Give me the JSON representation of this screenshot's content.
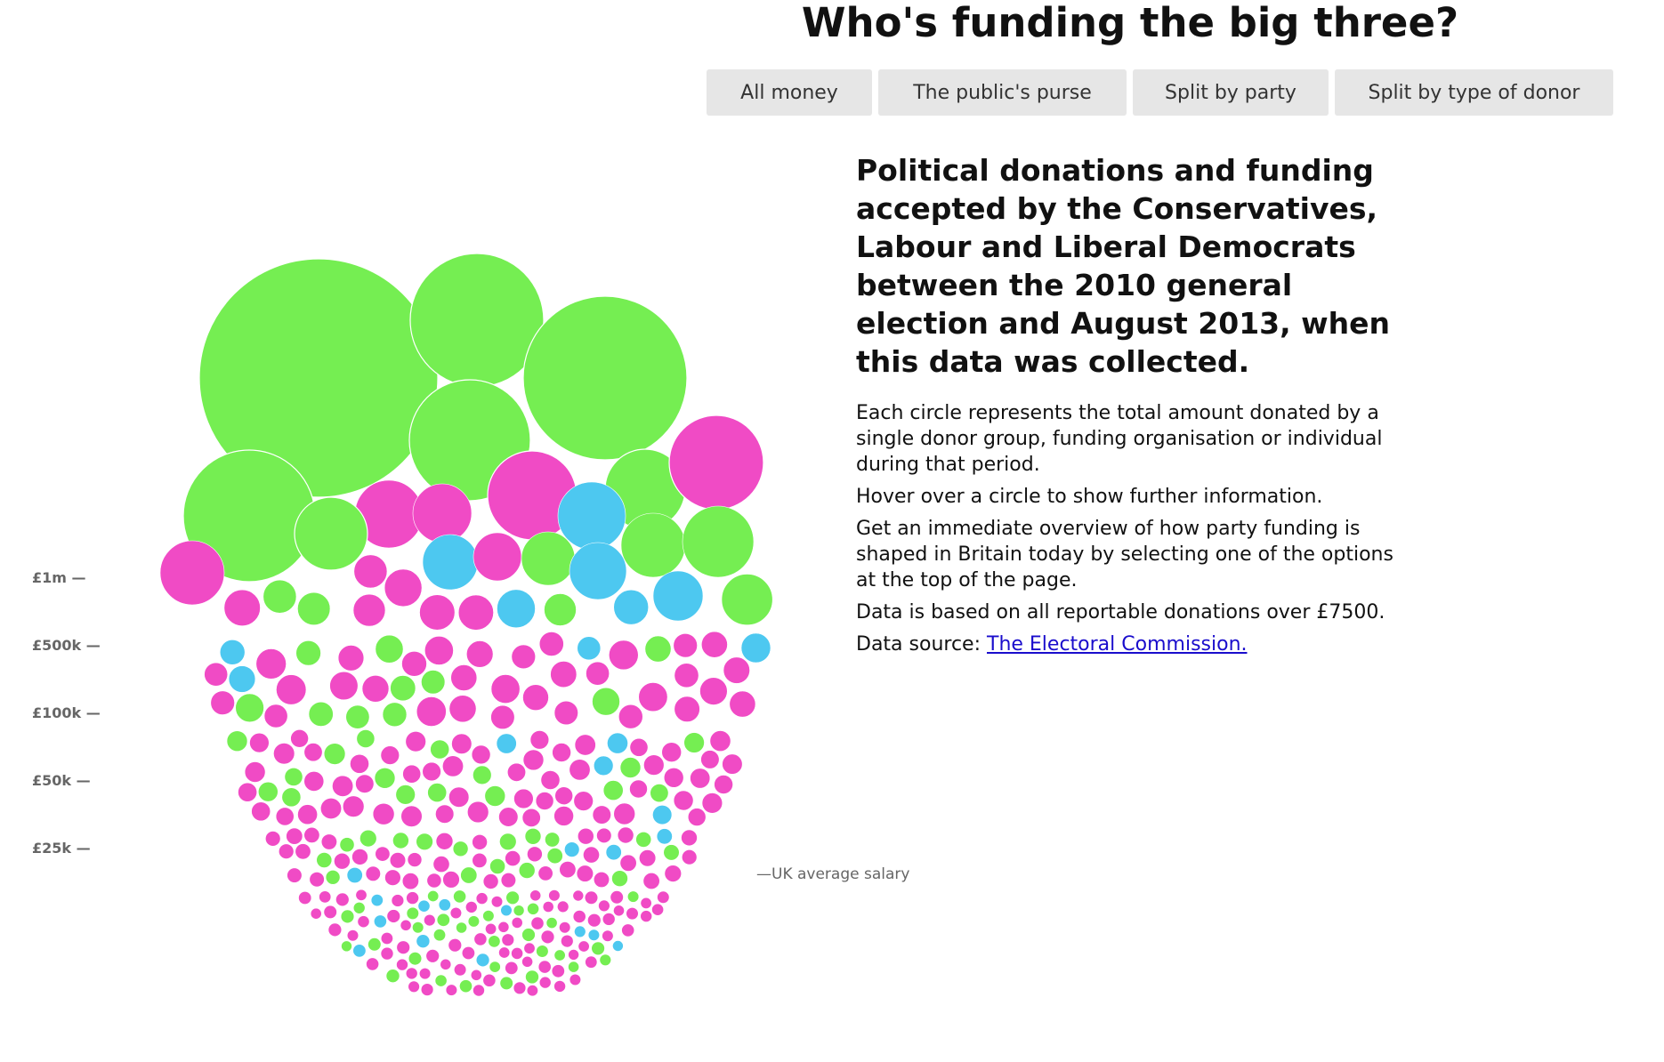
{
  "title": "Who's funding the big three?",
  "view_buttons": [
    {
      "label": "All money"
    },
    {
      "label": "The public's purse"
    },
    {
      "label": "Split by party"
    },
    {
      "label": "Split by type of donor"
    }
  ],
  "info": {
    "heading": "Political donations and funding accepted by the Conservatives, Labour and Liberal Democrats between the 2010 general election and August 2013, when this data was collected.",
    "paragraphs": [
      "Each circle represents the total amount donated by a single donor group, funding organisation or individual during that period.",
      "Hover over a circle to show further information.",
      "Get an immediate overview of how party funding is shaped in Britain today by selecting one of the options at the top of the page.",
      "Data is based on all reportable donations over £7500."
    ],
    "source_prefix": "Data source: ",
    "source_link": "The Electoral Commission."
  },
  "colors": {
    "green": "#75ee52",
    "magenta": "#f04bc5",
    "blue": "#4dc8f0",
    "background": "#ffffff",
    "button_bg": "#e6e6e6"
  },
  "chart_data": {
    "type": "bubble",
    "scale_labels": [
      "£1m —",
      "£500k —",
      "£100k —",
      "£50k —",
      "£25k —"
    ],
    "reference_label": "—UK average salary",
    "color_groups": [
      "green",
      "magenta",
      "blue"
    ],
    "bands": [
      {
        "name": "over-1m",
        "count": 20,
        "r_min": 31,
        "r_max": 135,
        "magenta_share": 0.35,
        "blue_share": 0.12
      },
      {
        "name": "500k-1m",
        "count": 40,
        "r_min": 18,
        "r_max": 30,
        "magenta_share": 0.62,
        "blue_share": 0.14
      },
      {
        "name": "100k-500k",
        "count": 90,
        "r_min": 13,
        "r_max": 17,
        "magenta_share": 0.78,
        "blue_share": 0.06
      },
      {
        "name": "50k-100k",
        "count": 110,
        "r_min": 10,
        "r_max": 12,
        "magenta_share": 0.76,
        "blue_share": 0.08
      },
      {
        "name": "25k-50k",
        "count": 180,
        "r_min": 8,
        "r_max": 9.5,
        "magenta_share": 0.68,
        "blue_share": 0.08
      },
      {
        "name": "under-25k",
        "count": 420,
        "r_min": 6,
        "r_max": 7.5,
        "magenta_share": 0.66,
        "blue_share": 0.1
      }
    ]
  }
}
